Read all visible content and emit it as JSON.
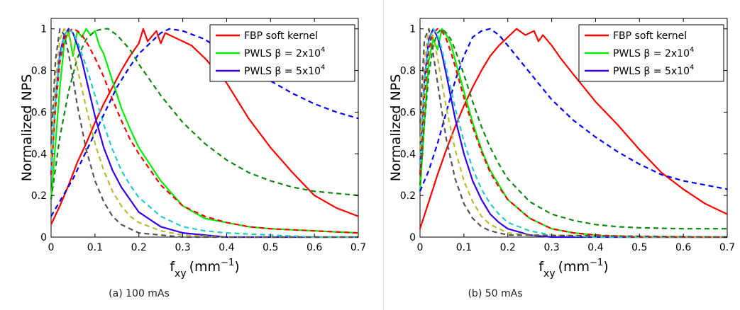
{
  "captions": {
    "a": "(a) 100 mAs",
    "b": "(b) 50 mAs"
  },
  "colors": {
    "fbp": "#ff0000",
    "pwls2": "#00ee00",
    "pwls5": "#3300ee",
    "dash_blue": "#0000ff",
    "dash_green": "#118811",
    "dash_cyan": "#22cccc",
    "dash_yellow": "#bbbb33",
    "dash_gray": "#555555"
  },
  "chart_data": [
    {
      "type": "line",
      "ylabel": "Normalized NPS",
      "xlabel": {
        "main": "f",
        "sub": "xy",
        "unit": "(mm",
        "exp": "−1",
        "close": ")"
      },
      "xlim": [
        0,
        0.7
      ],
      "ylim": [
        0,
        1.05
      ],
      "xticks": [
        "0",
        "0.1",
        "0.2",
        "0.3",
        "0.4",
        "0.5",
        "0.6",
        "0.7"
      ],
      "yticks": [
        "0",
        "0.2",
        "0.4",
        "0.6",
        "0.8",
        "1"
      ],
      "legend": [
        {
          "prefix": "FBP soft kernel",
          "beta": "",
          "exp": ""
        },
        {
          "prefix": "PWLS ",
          "beta": "β = 2x10",
          "exp": "4"
        },
        {
          "prefix": "PWLS ",
          "beta": "β = 5x10",
          "exp": "4"
        }
      ],
      "legend_position": "top-right",
      "series": [
        {
          "name": "FBP soft kernel",
          "style": "solid",
          "color": "fbp",
          "x": [
            0,
            0.02,
            0.04,
            0.06,
            0.08,
            0.1,
            0.12,
            0.14,
            0.16,
            0.18,
            0.2,
            0.21,
            0.22,
            0.24,
            0.25,
            0.26,
            0.28,
            0.3,
            0.32,
            0.35,
            0.4,
            0.45,
            0.5,
            0.55,
            0.6,
            0.65,
            0.7
          ],
          "y": [
            0.06,
            0.15,
            0.25,
            0.36,
            0.45,
            0.55,
            0.64,
            0.72,
            0.8,
            0.87,
            0.93,
            1.0,
            0.94,
            0.99,
            0.93,
            0.98,
            0.96,
            0.94,
            0.92,
            0.86,
            0.74,
            0.57,
            0.43,
            0.31,
            0.2,
            0.14,
            0.1
          ]
        },
        {
          "name": "PWLS β = 2x10^4",
          "style": "solid",
          "color": "pwls2",
          "x": [
            0,
            0.01,
            0.02,
            0.03,
            0.04,
            0.05,
            0.06,
            0.07,
            0.08,
            0.09,
            0.1,
            0.11,
            0.12,
            0.14,
            0.16,
            0.18,
            0.2,
            0.25,
            0.3,
            0.35,
            0.4,
            0.45,
            0.5,
            0.6,
            0.7
          ],
          "y": [
            0.18,
            0.45,
            0.72,
            0.93,
            0.99,
            0.87,
            0.99,
            0.96,
            1.0,
            0.97,
            0.99,
            0.92,
            0.88,
            0.75,
            0.62,
            0.52,
            0.43,
            0.27,
            0.15,
            0.09,
            0.07,
            0.05,
            0.04,
            0.03,
            0.02
          ]
        },
        {
          "name": "PWLS β = 5x10^4",
          "style": "solid",
          "color": "pwls5",
          "x": [
            0,
            0.01,
            0.02,
            0.03,
            0.04,
            0.05,
            0.06,
            0.07,
            0.08,
            0.1,
            0.12,
            0.14,
            0.16,
            0.2,
            0.25,
            0.3,
            0.35,
            0.4,
            0.5,
            0.6,
            0.7
          ],
          "y": [
            0.3,
            0.65,
            0.88,
            0.97,
            1.0,
            0.98,
            0.92,
            0.85,
            0.76,
            0.58,
            0.43,
            0.32,
            0.24,
            0.12,
            0.05,
            0.02,
            0.01,
            0.0,
            0.0,
            0.0,
            0.0
          ]
        },
        {
          "name": "",
          "style": "dashed",
          "color": "dash_blue",
          "x": [
            0,
            0.05,
            0.1,
            0.15,
            0.18,
            0.2,
            0.25,
            0.27,
            0.3,
            0.35,
            0.4,
            0.45,
            0.5,
            0.55,
            0.6,
            0.65,
            0.7
          ],
          "y": [
            0.1,
            0.28,
            0.5,
            0.72,
            0.82,
            0.88,
            0.98,
            1.0,
            0.99,
            0.95,
            0.88,
            0.81,
            0.75,
            0.69,
            0.64,
            0.6,
            0.57
          ]
        },
        {
          "name": "",
          "style": "dashed",
          "color": "dash_green",
          "x": [
            0,
            0.02,
            0.04,
            0.06,
            0.08,
            0.1,
            0.12,
            0.13,
            0.15,
            0.18,
            0.2,
            0.25,
            0.3,
            0.35,
            0.4,
            0.45,
            0.5,
            0.55,
            0.6,
            0.65,
            0.7
          ],
          "y": [
            0.18,
            0.48,
            0.7,
            0.86,
            0.95,
            0.99,
            1.0,
            1.0,
            0.97,
            0.9,
            0.83,
            0.68,
            0.55,
            0.45,
            0.37,
            0.31,
            0.27,
            0.24,
            0.22,
            0.21,
            0.2
          ]
        },
        {
          "name": "",
          "style": "dashed",
          "color": "fbp",
          "x": [
            0,
            0.01,
            0.02,
            0.03,
            0.04,
            0.05,
            0.06,
            0.07,
            0.08,
            0.09,
            0.1,
            0.12,
            0.14,
            0.16,
            0.18,
            0.2,
            0.25,
            0.3,
            0.35,
            0.4,
            0.45,
            0.5,
            0.6,
            0.7
          ],
          "y": [
            0.3,
            0.62,
            0.84,
            0.95,
            0.99,
            1.0,
            0.99,
            0.97,
            0.94,
            0.9,
            0.86,
            0.77,
            0.66,
            0.56,
            0.47,
            0.4,
            0.25,
            0.15,
            0.1,
            0.07,
            0.05,
            0.04,
            0.03,
            0.02
          ]
        },
        {
          "name": "",
          "style": "dashed",
          "color": "dash_cyan",
          "x": [
            0,
            0.01,
            0.02,
            0.03,
            0.04,
            0.05,
            0.06,
            0.08,
            0.1,
            0.12,
            0.14,
            0.16,
            0.18,
            0.2,
            0.25,
            0.3,
            0.35,
            0.4,
            0.5,
            0.6,
            0.7
          ],
          "y": [
            0.32,
            0.65,
            0.86,
            0.97,
            1.0,
            0.98,
            0.94,
            0.82,
            0.68,
            0.54,
            0.42,
            0.32,
            0.25,
            0.19,
            0.1,
            0.05,
            0.03,
            0.02,
            0.01,
            0.0,
            0.0
          ]
        },
        {
          "name": "",
          "style": "dashed",
          "color": "dash_yellow",
          "x": [
            0,
            0.01,
            0.02,
            0.03,
            0.04,
            0.05,
            0.06,
            0.08,
            0.1,
            0.12,
            0.14,
            0.16,
            0.18,
            0.2,
            0.25,
            0.3,
            0.4,
            0.5,
            0.7
          ],
          "y": [
            0.38,
            0.75,
            0.95,
            1.0,
            0.97,
            0.9,
            0.81,
            0.62,
            0.45,
            0.32,
            0.22,
            0.15,
            0.1,
            0.07,
            0.03,
            0.01,
            0.0,
            0.0,
            0.0
          ]
        },
        {
          "name": "",
          "style": "dashed",
          "color": "dash_gray",
          "x": [
            0,
            0.01,
            0.02,
            0.03,
            0.04,
            0.05,
            0.06,
            0.08,
            0.1,
            0.12,
            0.14,
            0.16,
            0.18,
            0.2,
            0.25,
            0.3,
            0.4,
            0.7
          ],
          "y": [
            0.45,
            0.85,
            1.0,
            0.97,
            0.88,
            0.76,
            0.63,
            0.42,
            0.27,
            0.17,
            0.1,
            0.06,
            0.04,
            0.02,
            0.01,
            0.0,
            0.0,
            0.0
          ]
        }
      ]
    },
    {
      "type": "line",
      "ylabel": "Normalized NPS",
      "xlabel": {
        "main": "f",
        "sub": "xy",
        "unit": "(mm",
        "exp": "−1",
        "close": ")"
      },
      "xlim": [
        0,
        0.7
      ],
      "ylim": [
        0,
        1.05
      ],
      "xticks": [
        "0",
        "0.1",
        "0.2",
        "0.3",
        "0.4",
        "0.5",
        "0.6",
        "0.7"
      ],
      "yticks": [
        "0",
        "0.2",
        "0.4",
        "0.6",
        "0.8",
        "1"
      ],
      "legend": [
        {
          "prefix": "FBP soft kernel",
          "beta": "",
          "exp": ""
        },
        {
          "prefix": "PWLS ",
          "beta": "β = 2x10",
          "exp": "4"
        },
        {
          "prefix": "PWLS ",
          "beta": "β = 5x10",
          "exp": "4"
        }
      ],
      "legend_position": "top-right",
      "series": [
        {
          "name": "FBP soft kernel",
          "style": "solid",
          "color": "fbp",
          "x": [
            0,
            0.02,
            0.04,
            0.06,
            0.08,
            0.1,
            0.12,
            0.14,
            0.16,
            0.18,
            0.2,
            0.22,
            0.24,
            0.26,
            0.27,
            0.28,
            0.3,
            0.32,
            0.35,
            0.4,
            0.45,
            0.5,
            0.55,
            0.6,
            0.65,
            0.7
          ],
          "y": [
            0.04,
            0.17,
            0.3,
            0.42,
            0.53,
            0.63,
            0.72,
            0.8,
            0.87,
            0.92,
            0.96,
            1.0,
            0.97,
            0.99,
            0.94,
            0.97,
            0.92,
            0.86,
            0.78,
            0.65,
            0.54,
            0.42,
            0.31,
            0.23,
            0.16,
            0.11
          ]
        },
        {
          "name": "PWLS β = 2x10^4",
          "style": "solid",
          "color": "pwls2",
          "x": [
            0,
            0.01,
            0.02,
            0.03,
            0.04,
            0.05,
            0.06,
            0.07,
            0.08,
            0.1,
            0.12,
            0.14,
            0.16,
            0.18,
            0.2,
            0.25,
            0.3,
            0.35,
            0.4,
            0.45,
            0.5,
            0.6,
            0.7
          ],
          "y": [
            0.22,
            0.55,
            0.85,
            0.95,
            0.9,
            1.0,
            0.97,
            0.93,
            0.85,
            0.7,
            0.55,
            0.42,
            0.32,
            0.25,
            0.18,
            0.09,
            0.04,
            0.02,
            0.01,
            0.0,
            0.0,
            0.0,
            0.0
          ]
        },
        {
          "name": "PWLS β = 5x10^4",
          "style": "solid",
          "color": "pwls5",
          "x": [
            0,
            0.01,
            0.02,
            0.03,
            0.04,
            0.05,
            0.06,
            0.08,
            0.1,
            0.12,
            0.14,
            0.16,
            0.18,
            0.2,
            0.25,
            0.3,
            0.4,
            0.5,
            0.7
          ],
          "y": [
            0.35,
            0.75,
            0.95,
            1.0,
            0.96,
            0.88,
            0.78,
            0.57,
            0.4,
            0.27,
            0.18,
            0.11,
            0.07,
            0.04,
            0.01,
            0.0,
            0.0,
            0.0,
            0.0
          ]
        },
        {
          "name": "",
          "style": "dashed",
          "color": "dash_blue",
          "x": [
            0,
            0.02,
            0.04,
            0.06,
            0.08,
            0.1,
            0.12,
            0.14,
            0.16,
            0.18,
            0.2,
            0.25,
            0.3,
            0.35,
            0.4,
            0.45,
            0.5,
            0.55,
            0.6,
            0.65,
            0.7
          ],
          "y": [
            0.22,
            0.32,
            0.45,
            0.6,
            0.75,
            0.87,
            0.96,
            0.99,
            1.0,
            0.97,
            0.92,
            0.79,
            0.66,
            0.56,
            0.48,
            0.41,
            0.35,
            0.3,
            0.27,
            0.25,
            0.23
          ]
        },
        {
          "name": "",
          "style": "dashed",
          "color": "dash_green",
          "x": [
            0,
            0.01,
            0.02,
            0.03,
            0.04,
            0.05,
            0.06,
            0.07,
            0.08,
            0.1,
            0.12,
            0.14,
            0.16,
            0.18,
            0.2,
            0.25,
            0.3,
            0.35,
            0.4,
            0.45,
            0.5,
            0.6,
            0.7
          ],
          "y": [
            0.25,
            0.55,
            0.78,
            0.92,
            0.98,
            1.0,
            0.98,
            0.95,
            0.9,
            0.78,
            0.65,
            0.53,
            0.43,
            0.35,
            0.28,
            0.17,
            0.11,
            0.08,
            0.06,
            0.05,
            0.045,
            0.04,
            0.04
          ]
        },
        {
          "name": "",
          "style": "dashed",
          "color": "fbp",
          "x": [
            0,
            0.01,
            0.02,
            0.03,
            0.04,
            0.05,
            0.06,
            0.07,
            0.08,
            0.1,
            0.12,
            0.14,
            0.16,
            0.18,
            0.2,
            0.25,
            0.3,
            0.35,
            0.4,
            0.5,
            0.6,
            0.7
          ],
          "y": [
            0.3,
            0.68,
            0.9,
            0.98,
            1.0,
            0.99,
            0.95,
            0.89,
            0.82,
            0.67,
            0.53,
            0.41,
            0.31,
            0.24,
            0.18,
            0.09,
            0.04,
            0.02,
            0.01,
            0.0,
            0.0,
            0.0
          ]
        },
        {
          "name": "",
          "style": "dashed",
          "color": "dash_cyan",
          "x": [
            0,
            0.01,
            0.02,
            0.03,
            0.04,
            0.05,
            0.06,
            0.08,
            0.1,
            0.12,
            0.14,
            0.16,
            0.18,
            0.2,
            0.25,
            0.3,
            0.4,
            0.7
          ],
          "y": [
            0.35,
            0.74,
            0.94,
            1.0,
            0.97,
            0.9,
            0.81,
            0.62,
            0.46,
            0.33,
            0.23,
            0.16,
            0.11,
            0.07,
            0.03,
            0.01,
            0.0,
            0.0
          ]
        },
        {
          "name": "",
          "style": "dashed",
          "color": "dash_yellow",
          "x": [
            0,
            0.01,
            0.02,
            0.03,
            0.04,
            0.05,
            0.06,
            0.08,
            0.1,
            0.12,
            0.14,
            0.16,
            0.18,
            0.2,
            0.25,
            0.7
          ],
          "y": [
            0.42,
            0.85,
            1.0,
            0.96,
            0.86,
            0.74,
            0.62,
            0.42,
            0.27,
            0.17,
            0.1,
            0.06,
            0.04,
            0.02,
            0.01,
            0.0
          ]
        },
        {
          "name": "",
          "style": "dashed",
          "color": "dash_gray",
          "x": [
            0,
            0.01,
            0.02,
            0.03,
            0.04,
            0.05,
            0.06,
            0.08,
            0.1,
            0.12,
            0.14,
            0.16,
            0.18,
            0.2,
            0.7
          ],
          "y": [
            0.55,
            0.95,
            1.0,
            0.88,
            0.74,
            0.6,
            0.47,
            0.28,
            0.16,
            0.09,
            0.05,
            0.03,
            0.02,
            0.01,
            0.0
          ]
        }
      ]
    }
  ]
}
